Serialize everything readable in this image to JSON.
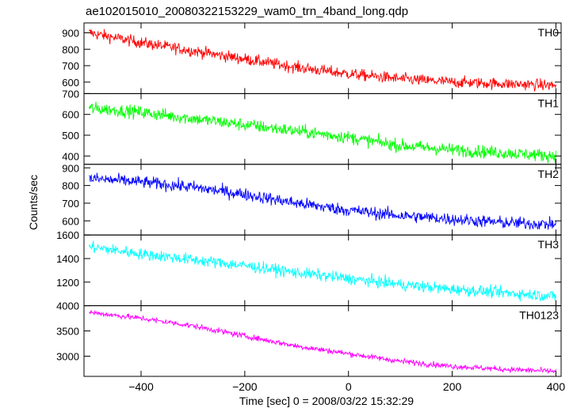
{
  "title": "ae102015010_20080322153229_wam0_trn_4band_long.qdp",
  "ylabel": "Counts/sec",
  "xlabel": "Time [sec] 0 = 2008/03/22 15:32:29",
  "chart_data": {
    "type": "line",
    "title": "ae102015010_20080322153229_wam0_trn_4band_long.qdp",
    "xlabel": "Time [sec] 0 = 2008/03/22 15:32:29",
    "ylabel": "Counts/sec",
    "xlim": [
      -510,
      410
    ],
    "xticks": [
      -400,
      -200,
      0,
      200,
      400
    ],
    "xtick_labels": [
      "−400",
      "−200",
      "0",
      "200",
      "400"
    ],
    "x_range_data": [
      -500,
      400
    ],
    "grid": false,
    "panels": [
      {
        "name": "TH0",
        "color": "#ff0000",
        "ylim": [
          530,
          960
        ],
        "yticks": [
          600,
          700,
          800,
          900
        ],
        "ytick_labels": [
          "600",
          "700",
          "800",
          "900"
        ],
        "trend_x": [
          -500,
          -400,
          -300,
          -200,
          -100,
          0,
          100,
          200,
          300,
          400
        ],
        "trend_y": [
          900,
          840,
          790,
          740,
          690,
          650,
          620,
          600,
          590,
          580
        ],
        "noise": 25
      },
      {
        "name": "TH1",
        "color": "#00ff00",
        "ylim": [
          360,
          700
        ],
        "yticks": [
          400,
          500,
          600,
          700
        ],
        "ytick_labels": [
          "400",
          "500",
          "600",
          "700"
        ],
        "trend_x": [
          -500,
          -400,
          -300,
          -200,
          -100,
          0,
          100,
          200,
          300,
          400
        ],
        "trend_y": [
          630,
          610,
          580,
          550,
          520,
          490,
          450,
          430,
          415,
          400
        ],
        "noise": 22
      },
      {
        "name": "TH2",
        "color": "#0000ff",
        "ylim": [
          520,
          920
        ],
        "yticks": [
          600,
          700,
          800,
          900
        ],
        "ytick_labels": [
          "600",
          "700",
          "800",
          "900"
        ],
        "trend_x": [
          -500,
          -400,
          -300,
          -200,
          -100,
          0,
          100,
          200,
          300,
          400
        ],
        "trend_y": [
          840,
          820,
          790,
          750,
          700,
          660,
          630,
          610,
          590,
          580
        ],
        "noise": 25
      },
      {
        "name": "TH3",
        "color": "#00ffff",
        "ylim": [
          1000,
          1600
        ],
        "yticks": [
          1200,
          1400,
          1600
        ],
        "ytick_labels": [
          "1200",
          "1400",
          "1600"
        ],
        "trend_x": [
          -500,
          -400,
          -300,
          -200,
          -100,
          0,
          100,
          200,
          300,
          400
        ],
        "trend_y": [
          1500,
          1440,
          1390,
          1340,
          1280,
          1230,
          1180,
          1140,
          1110,
          1080
        ],
        "noise": 35
      },
      {
        "name": "TH0123",
        "color": "#ff00ff",
        "ylim": [
          2600,
          4000
        ],
        "yticks": [
          3000,
          3500,
          4000
        ],
        "ytick_labels": [
          "3000",
          "3500",
          "4000"
        ],
        "trend_x": [
          -500,
          -400,
          -300,
          -200,
          -100,
          0,
          100,
          200,
          300,
          400
        ],
        "trend_y": [
          3870,
          3750,
          3600,
          3400,
          3200,
          3050,
          2900,
          2800,
          2740,
          2700
        ],
        "noise": 40
      }
    ]
  }
}
